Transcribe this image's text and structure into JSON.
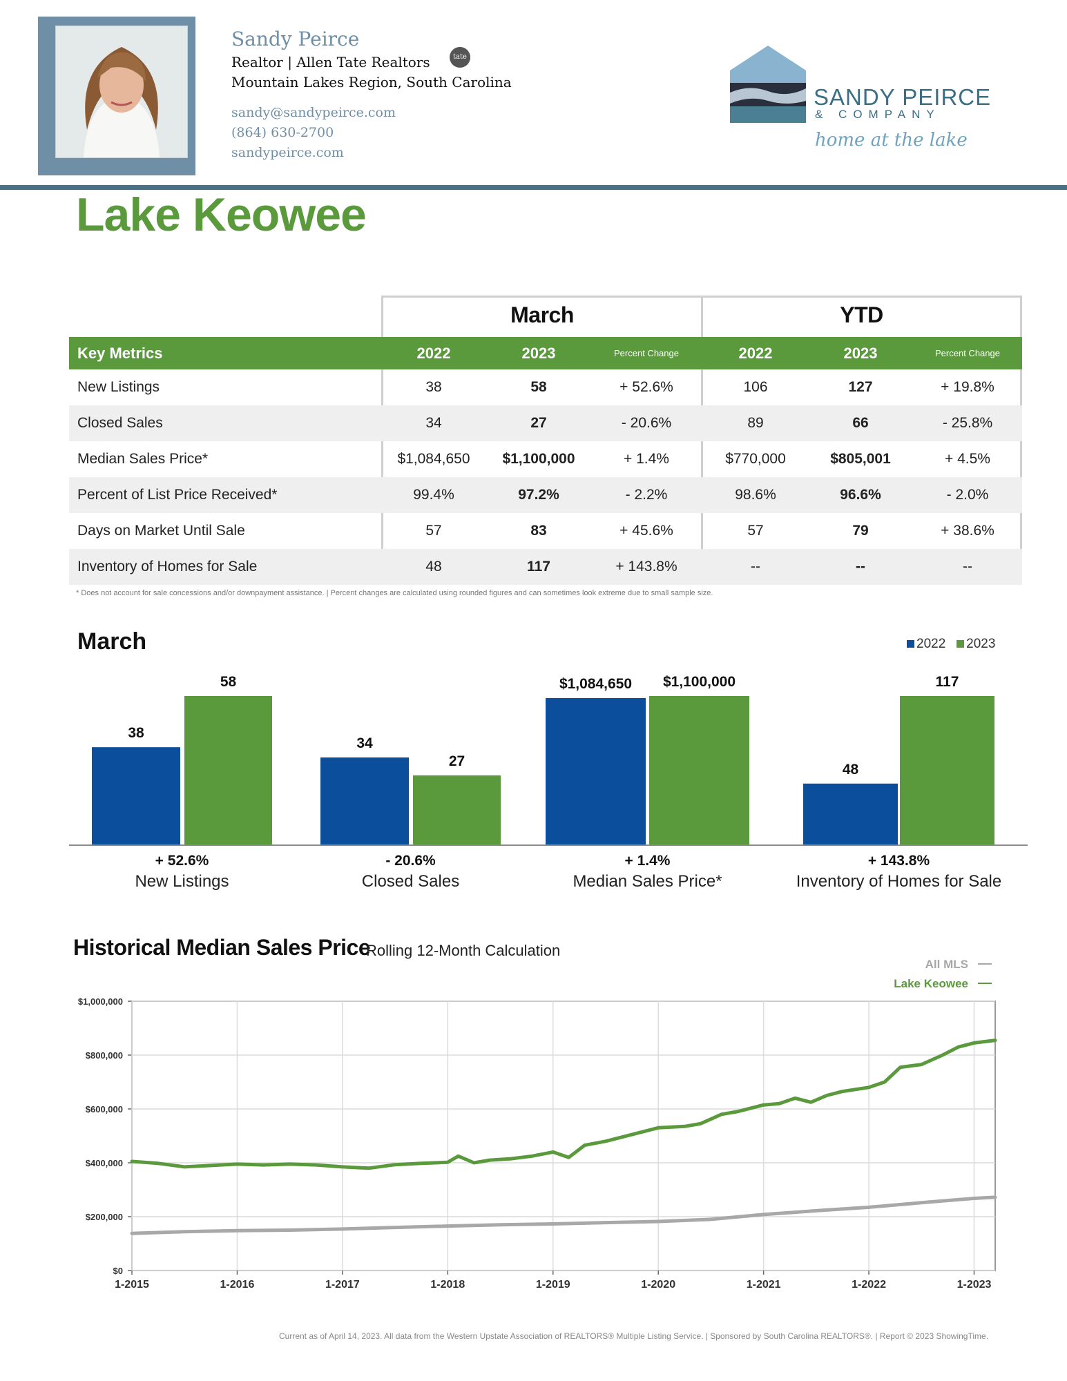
{
  "agent": {
    "name": "Sandy Peirce",
    "role": "Realtor  | Allen Tate Realtors",
    "tate_badge": "tate",
    "region": "Mountain Lakes Region, South Carolina",
    "email": "sandy@sandypeirce.com",
    "phone": "(864) 630-2700",
    "website": "sandypeirce.com"
  },
  "brand": {
    "name": "SANDY PEIRCE",
    "company": "& COMPANY",
    "tagline": "home at the lake",
    "colors": {
      "primary": "#3b6f86",
      "light": "#8ab3cf",
      "dark": "#2a2f3d"
    }
  },
  "page_title": "Lake Keowee",
  "colors": {
    "green": "#5a9a3c",
    "blue": "#0b4f9c",
    "gray_line": "#a8a8a8"
  },
  "metrics_table": {
    "groups": [
      "March",
      "YTD"
    ],
    "key_metrics_label": "Key Metrics",
    "col_headers": [
      "2022",
      "2023",
      "Percent Change",
      "2022",
      "2023",
      "Percent Change"
    ],
    "rows": [
      {
        "label": "New Listings",
        "values": [
          "38",
          "58",
          "+ 52.6%",
          "106",
          "127",
          "+ 19.8%"
        ]
      },
      {
        "label": "Closed Sales",
        "values": [
          "34",
          "27",
          "- 20.6%",
          "89",
          "66",
          "- 25.8%"
        ]
      },
      {
        "label": "Median Sales Price*",
        "values": [
          "$1,084,650",
          "$1,100,000",
          "+ 1.4%",
          "$770,000",
          "$805,001",
          "+ 4.5%"
        ]
      },
      {
        "label": "Percent of List Price Received*",
        "values": [
          "99.4%",
          "97.2%",
          "- 2.2%",
          "98.6%",
          "96.6%",
          "- 2.0%"
        ]
      },
      {
        "label": "Days on Market Until Sale",
        "values": [
          "57",
          "83",
          "+ 45.6%",
          "57",
          "79",
          "+ 38.6%"
        ]
      },
      {
        "label": "Inventory of Homes for Sale",
        "values": [
          "48",
          "117",
          "+ 143.8%",
          "--",
          "--",
          "--"
        ]
      }
    ],
    "footnote": "* Does not account for sale concessions and/or downpayment assistance.  |  Percent changes are calculated using rounded figures and can sometimes look extreme due to small sample size."
  },
  "chart_data": [
    {
      "type": "bar",
      "title": "March",
      "legend": [
        "2022",
        "2023"
      ],
      "legend_position": "top-right",
      "categories": [
        "New Listings",
        "Closed Sales",
        "Median Sales Price*",
        "Inventory of Homes for Sale"
      ],
      "changes": [
        "+ 52.6%",
        "- 20.6%",
        "+ 1.4%",
        "+ 143.8%"
      ],
      "series": [
        {
          "name": "2022",
          "values": [
            38,
            34,
            1084650,
            48
          ],
          "labels": [
            "38",
            "34",
            "$1,084,650",
            "48"
          ],
          "color": "#0b4f9c"
        },
        {
          "name": "2023",
          "values": [
            58,
            27,
            1100000,
            117
          ],
          "labels": [
            "58",
            "27",
            "$1,100,000",
            "117"
          ],
          "color": "#5a9a3c"
        }
      ],
      "note": "Each category group is scaled independently."
    },
    {
      "type": "line",
      "title": "Historical Median Sales Price",
      "subtitle": "Rolling 12-Month Calculation",
      "xlabel": "",
      "ylabel": "",
      "x_ticks": [
        "1-2015",
        "1-2016",
        "1-2017",
        "1-2018",
        "1-2019",
        "1-2020",
        "1-2021",
        "1-2022",
        "1-2023"
      ],
      "y_ticks": [
        "$0",
        "$200,000",
        "$400,000",
        "$600,000",
        "$800,000",
        "$1,000,000"
      ],
      "ylim": [
        0,
        1000000
      ],
      "grid": true,
      "legend_position": "top-right",
      "series": [
        {
          "name": "All MLS",
          "color": "#a8a8a8",
          "x": [
            2015.0,
            2015.5,
            2016.0,
            2016.5,
            2017.0,
            2017.5,
            2018.0,
            2018.5,
            2019.0,
            2019.5,
            2020.0,
            2020.5,
            2021.0,
            2021.5,
            2022.0,
            2022.5,
            2023.0,
            2023.2
          ],
          "y": [
            138000,
            144000,
            148000,
            150000,
            154000,
            160000,
            165000,
            170000,
            173000,
            178000,
            182000,
            190000,
            208000,
            222000,
            235000,
            252000,
            268000,
            272000
          ]
        },
        {
          "name": "Lake Keowee",
          "color": "#5a9a3c",
          "x": [
            2015.0,
            2015.25,
            2015.5,
            2015.75,
            2016.0,
            2016.25,
            2016.5,
            2016.75,
            2017.0,
            2017.25,
            2017.5,
            2017.75,
            2018.0,
            2018.1,
            2018.25,
            2018.4,
            2018.6,
            2018.8,
            2019.0,
            2019.15,
            2019.3,
            2019.5,
            2019.75,
            2020.0,
            2020.25,
            2020.4,
            2020.6,
            2020.75,
            2021.0,
            2021.15,
            2021.3,
            2021.45,
            2021.6,
            2021.75,
            2022.0,
            2022.15,
            2022.3,
            2022.5,
            2022.7,
            2022.85,
            2023.0,
            2023.2
          ],
          "y": [
            405000,
            398000,
            385000,
            390000,
            395000,
            392000,
            395000,
            392000,
            385000,
            380000,
            393000,
            398000,
            402000,
            425000,
            400000,
            410000,
            415000,
            425000,
            440000,
            420000,
            465000,
            480000,
            505000,
            530000,
            535000,
            545000,
            580000,
            590000,
            615000,
            620000,
            640000,
            625000,
            650000,
            665000,
            680000,
            700000,
            755000,
            765000,
            800000,
            830000,
            845000,
            855000
          ]
        }
      ]
    }
  ],
  "footer": "Current as of April 14, 2023. All data from the Western Upstate Association of REALTORS® Multiple Listing Service.  |  Sponsored by South Carolina REALTORS®.  |  Report © 2023 ShowingTime."
}
